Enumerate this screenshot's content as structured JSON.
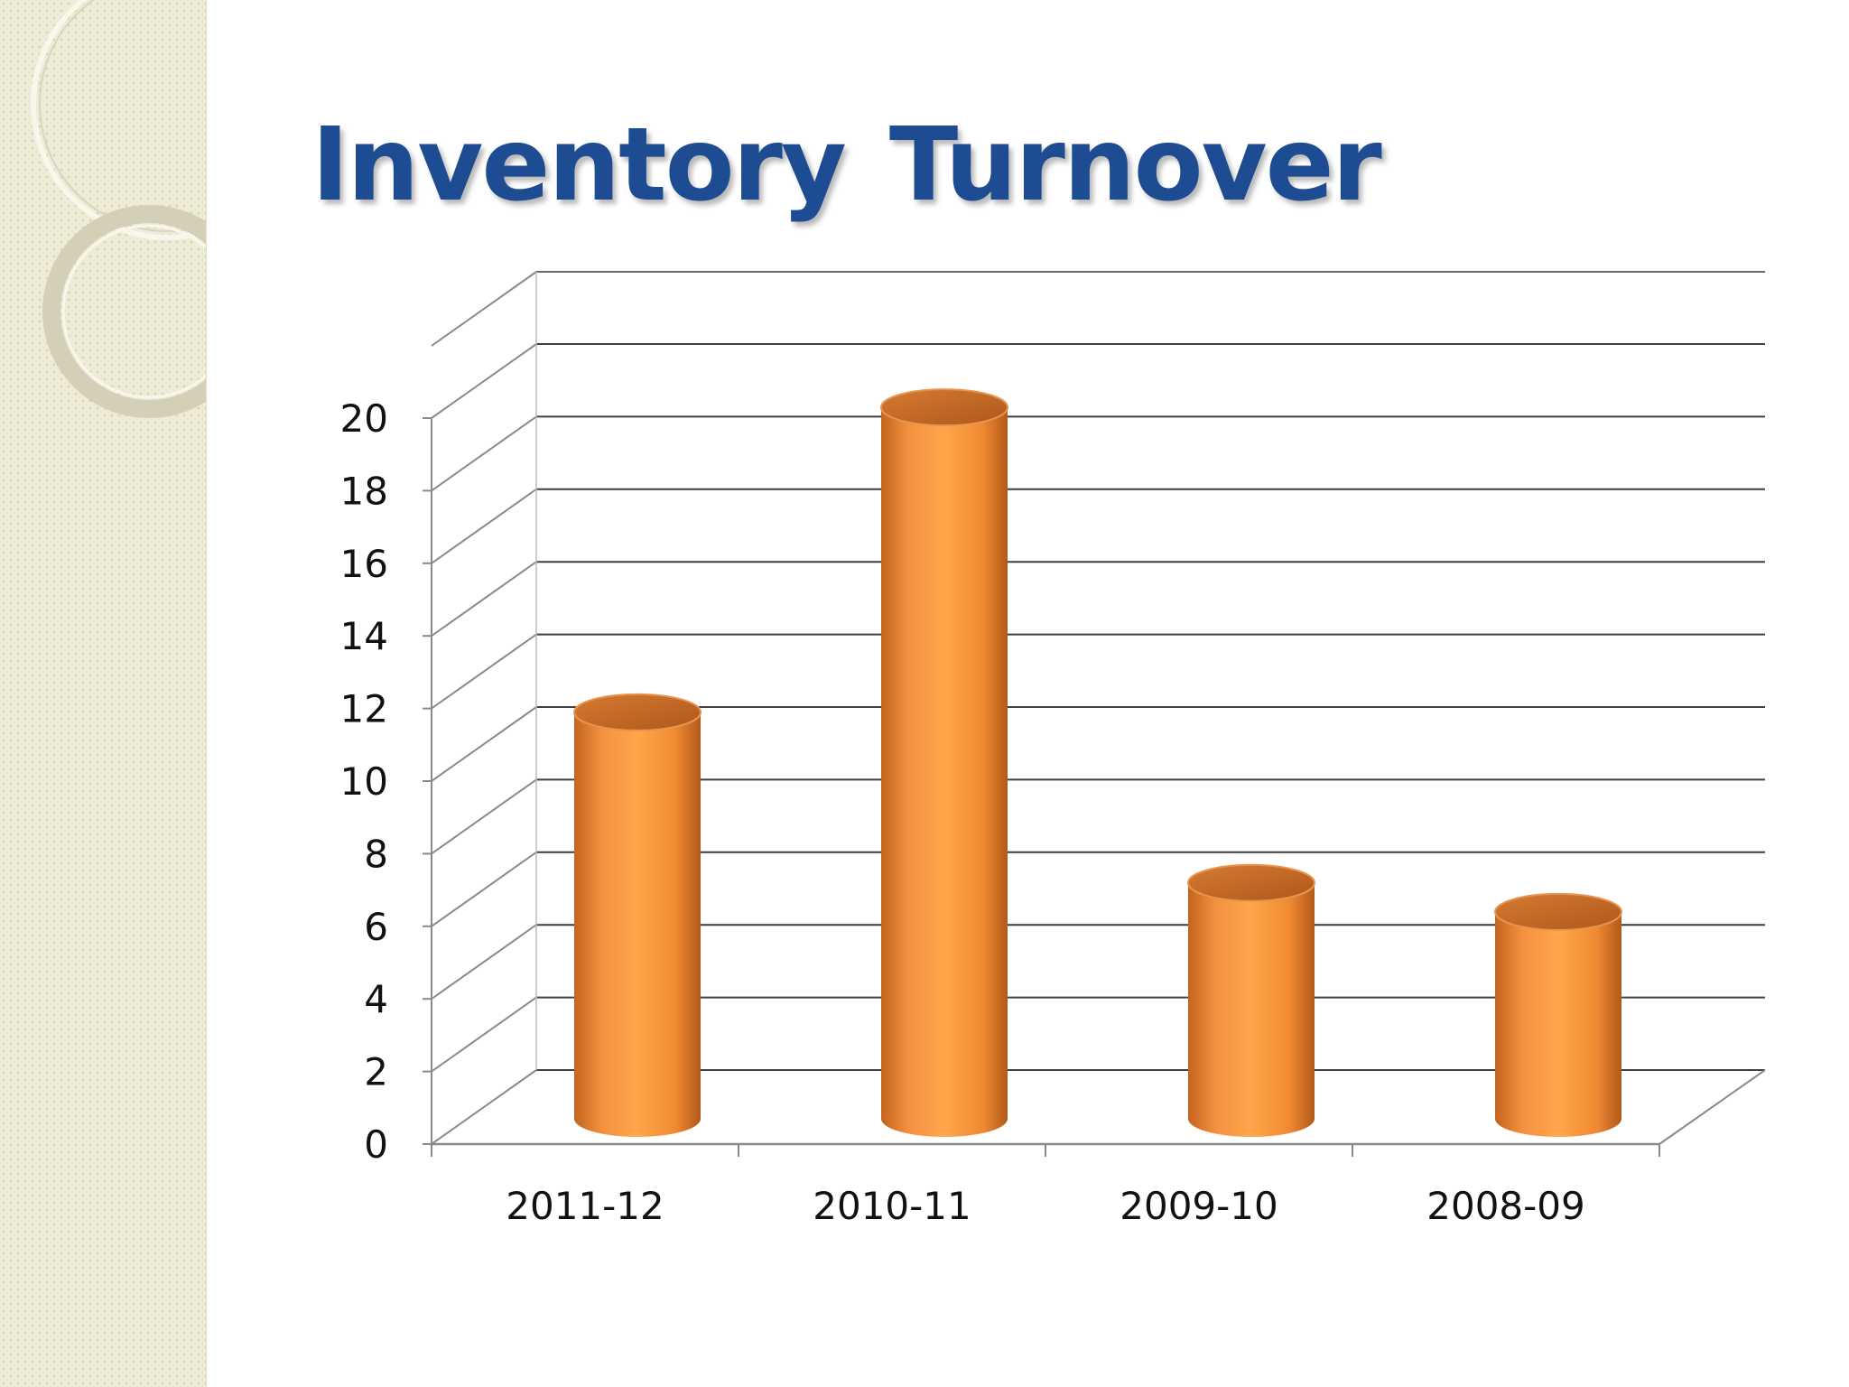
{
  "slide": {
    "title": "Inventory  Turnover"
  },
  "colors": {
    "title": "#1d4c92",
    "bar_light": "#ffa64b",
    "bar_mid": "#f08a33",
    "bar_dark": "#b85f1c",
    "grid": "#3f3f3f",
    "left_strip": "#eeecd6"
  },
  "chart_data": {
    "type": "bar",
    "style": "3d-cylinder",
    "title": "",
    "xlabel": "",
    "ylabel": "",
    "categories": [
      "2011-12",
      "2010-11",
      "2009-10",
      "2008-09"
    ],
    "values": [
      10.9,
      19.3,
      6.2,
      5.4
    ],
    "ylim": [
      0,
      20
    ],
    "ytick_step": 2,
    "yticks": [
      "0",
      "2",
      "4",
      "6",
      "8",
      "10",
      "12",
      "14",
      "16",
      "18",
      "20"
    ],
    "grid": true,
    "legend": "none"
  }
}
